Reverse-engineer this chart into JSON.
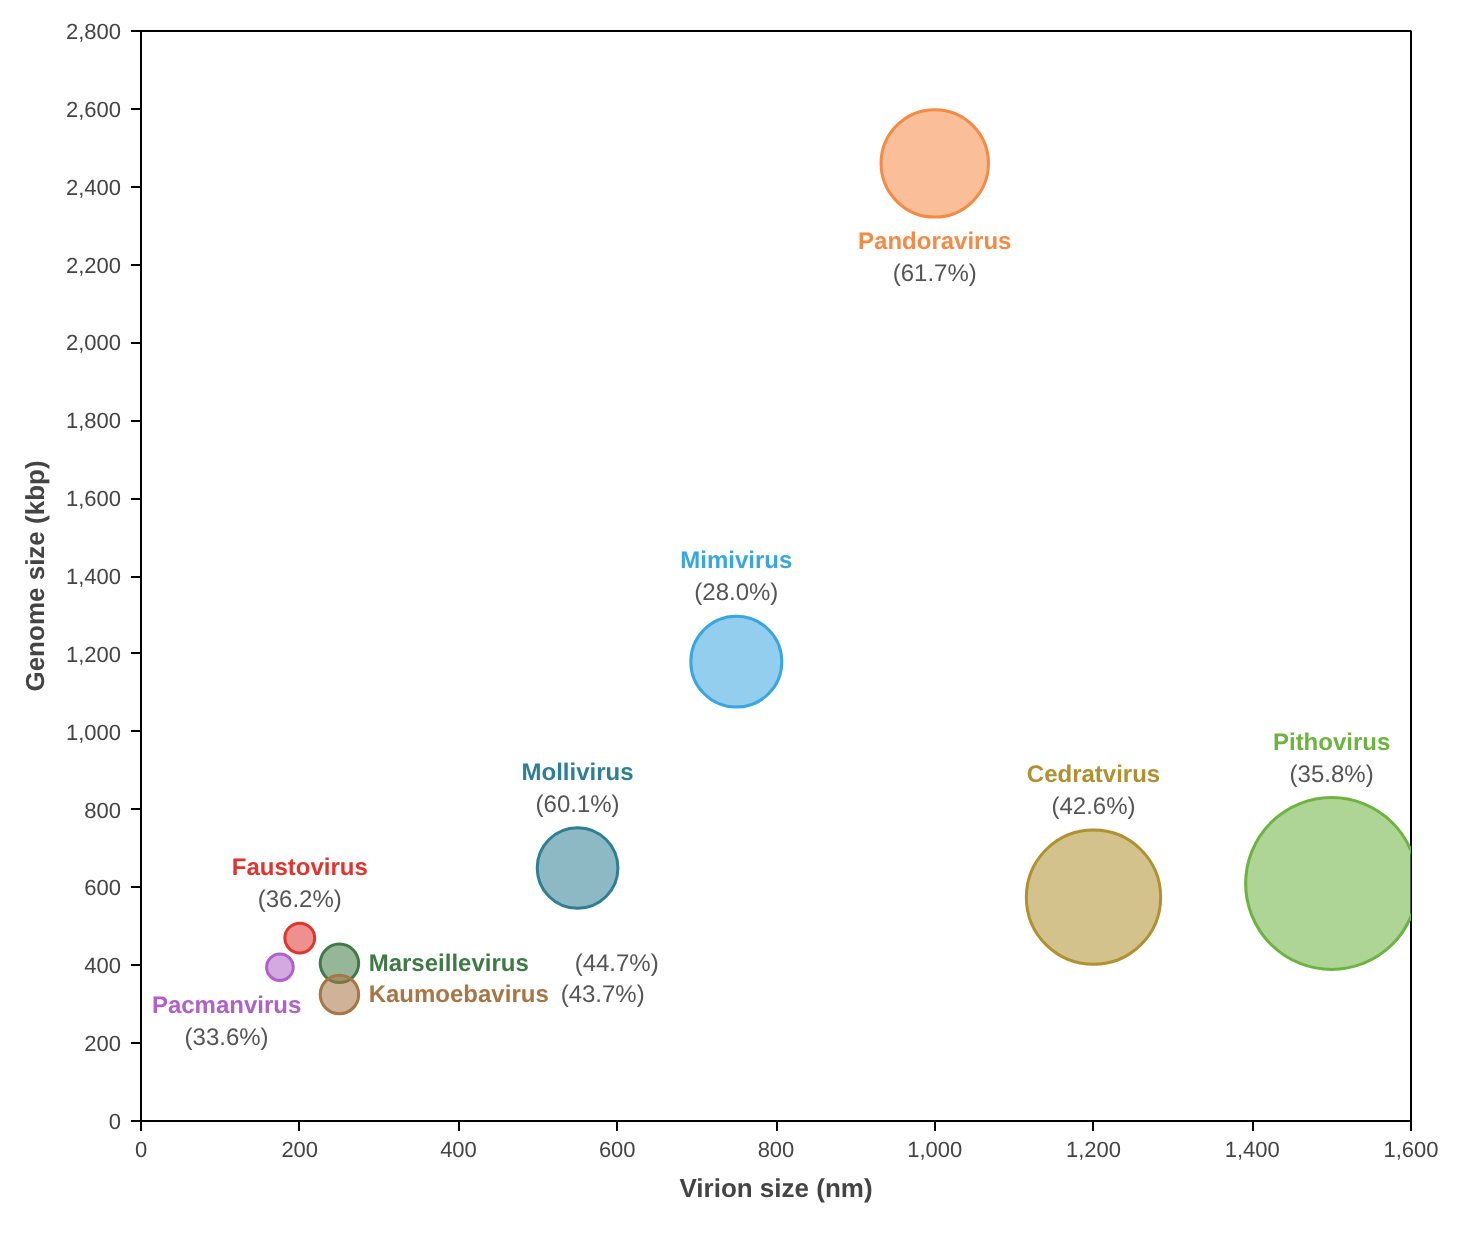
{
  "chart_data": {
    "type": "bubble",
    "xlabel": "Virion size (nm)",
    "ylabel": "Genome size (kbp)",
    "xlim": [
      0,
      1600
    ],
    "ylim": [
      0,
      2800
    ],
    "xticks": [
      0,
      200,
      400,
      600,
      800,
      {
        "value": 1000,
        "label": "1,000"
      },
      {
        "value": 1200,
        "label": "1,200"
      },
      {
        "value": 1400,
        "label": "1,400"
      },
      {
        "value": 1600,
        "label": "1,600"
      }
    ],
    "yticks": [
      0,
      200,
      400,
      600,
      800,
      {
        "value": 1000,
        "label": "1,000"
      },
      {
        "value": 1200,
        "label": "1,200"
      },
      {
        "value": 1400,
        "label": "1,400"
      },
      {
        "value": 1600,
        "label": "1,600"
      },
      {
        "value": 1800,
        "label": "1,800"
      },
      {
        "value": 2000,
        "label": "2,000"
      },
      {
        "value": 2200,
        "label": "2,200"
      },
      {
        "value": 2400,
        "label": "2,400"
      },
      {
        "value": 2600,
        "label": "2,600"
      },
      {
        "value": 2800,
        "label": "2,800"
      }
    ],
    "series": [
      {
        "name": "Pandoravirus",
        "color": "#f58a45",
        "x": [
          1000
        ],
        "values": [
          2460
        ],
        "sizes": [
          0.39
        ]
      },
      {
        "name": "Mimivirus",
        "color": "#3aa6e0",
        "x": [
          750
        ],
        "values": [
          1180
        ],
        "sizes": [
          0.28
        ]
      },
      {
        "name": "Mollivirus",
        "color": "#2f7f94",
        "x": [
          550
        ],
        "values": [
          650
        ],
        "sizes": [
          0.22
        ]
      },
      {
        "name": "Cedratvirus",
        "color": "#b0902f",
        "x": [
          1200
        ],
        "values": [
          575
        ],
        "sizes": [
          0.61
        ]
      },
      {
        "name": "Pithovirus",
        "color": "#6cb33f",
        "x": [
          1500
        ],
        "values": [
          610
        ],
        "sizes": [
          1
        ]
      },
      {
        "name": "Faustovirus",
        "color": "#e0352f",
        "x": [
          200
        ],
        "values": [
          470
        ],
        "sizes": [
          0.03
        ]
      },
      {
        "name": "Marseillevirus",
        "color": "#3f7a45",
        "x": [
          250
        ],
        "values": [
          405
        ],
        "sizes": [
          0.05
        ]
      },
      {
        "name": "Kaumoebavirus",
        "color": "#a87545",
        "x": [
          250
        ],
        "values": [
          325
        ],
        "sizes": [
          0.05
        ]
      },
      {
        "name": "Pacmanvirus",
        "color": "#b060c8",
        "x": [
          175
        ],
        "values": [
          395
        ],
        "sizes": [
          0.024
        ]
      }
    ],
    "annotations": [
      "(61.7%)",
      "(28.0%)",
      "(60.1%)",
      "(42.6%)",
      "(35.8%)",
      "(36.2%)",
      "(44.7%)",
      "(43.7%)",
      "(33.6%)"
    ]
  }
}
